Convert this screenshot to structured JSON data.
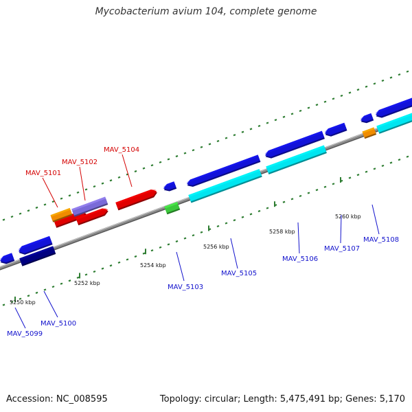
{
  "title": "Mycobacterium avium 104, complete genome",
  "footer": {
    "accession": "Accession: NC_008595",
    "summary": "Topology: circular; Length: 5,475,491 bp; Genes: 5,170"
  },
  "ticks": [
    {
      "label": "5250 kbp"
    },
    {
      "label": "5252 kbp"
    },
    {
      "label": "5254 kbp"
    },
    {
      "label": "5256 kbp"
    },
    {
      "label": "5258 kbp"
    },
    {
      "label": "5260 kbp"
    }
  ],
  "genes": [
    {
      "label": "MAV_5099",
      "color": "#1010cc"
    },
    {
      "label": "MAV_5100",
      "color": "#1010cc"
    },
    {
      "label": "MAV_5101",
      "color": "#d40000"
    },
    {
      "label": "MAV_5102",
      "color": "#d40000"
    },
    {
      "label": "MAV_5103",
      "color": "#1010cc"
    },
    {
      "label": "MAV_5104",
      "color": "#d40000"
    },
    {
      "label": "MAV_5105",
      "color": "#1010cc"
    },
    {
      "label": "MAV_5106",
      "color": "#1010cc"
    },
    {
      "label": "MAV_5107",
      "color": "#1010cc"
    },
    {
      "label": "MAV_5108",
      "color": "#1010cc"
    }
  ],
  "colors": {
    "backbone": "#8a8a8a",
    "dotted_track": "#2e7d32",
    "forward_gene": "#e00000",
    "reverse_gene": "#1212d8",
    "cds_cyan": "#00e5f0",
    "cds_navy": "#000080",
    "cds_orange": "#f08c00",
    "cds_purple": "#7a6ad8",
    "cds_green": "#3cc83c"
  }
}
